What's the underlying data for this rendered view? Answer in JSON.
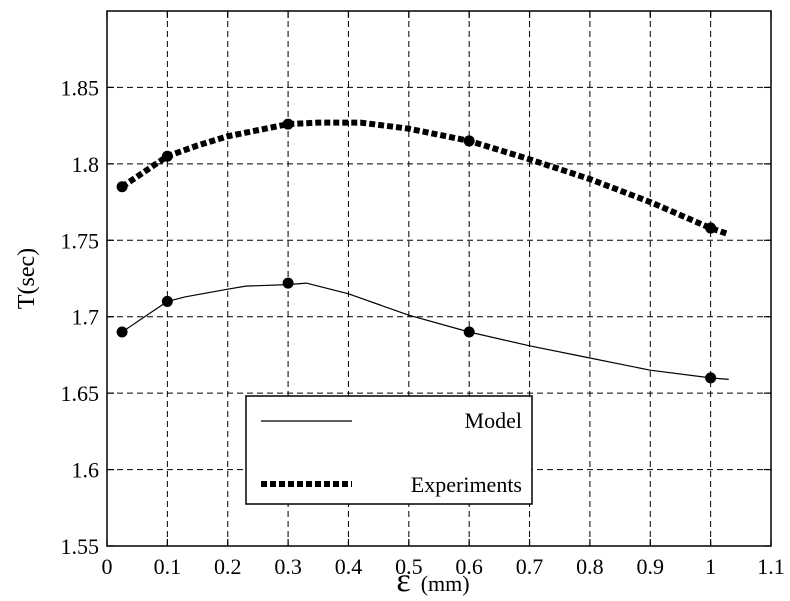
{
  "chart_data": {
    "type": "line",
    "title": "",
    "xlabel_symbol": "ε",
    "xlabel_unit": "(mm)",
    "ylabel": "T(sec)",
    "xlim": [
      0,
      1.1
    ],
    "ylim": [
      1.55,
      1.9
    ],
    "xticks": [
      "0",
      "0.1",
      "0.2",
      "0.3",
      "0.4",
      "0.5",
      "0.6",
      "0.7",
      "0.8",
      "0.9",
      "1",
      "1.1"
    ],
    "yticks": [
      "1.55",
      "1.6",
      "1.65",
      "1.7",
      "1.75",
      "1.8",
      "1.85"
    ],
    "xtick_values": [
      0,
      0.1,
      0.2,
      0.3,
      0.4,
      0.5,
      0.6,
      0.7,
      0.8,
      0.9,
      1.0,
      1.1
    ],
    "ytick_values": [
      1.55,
      1.6,
      1.65,
      1.7,
      1.75,
      1.8,
      1.85
    ],
    "grid": true,
    "grid_style": "dashed",
    "legend_position": "bottom-center",
    "series": [
      {
        "name": "Model",
        "style": "solid-thin",
        "color": "#000000",
        "line": [
          [
            0.025,
            1.69
          ],
          [
            0.1,
            1.71
          ],
          [
            0.13,
            1.713
          ],
          [
            0.2,
            1.718
          ],
          [
            0.23,
            1.72
          ],
          [
            0.3,
            1.721
          ],
          [
            0.33,
            1.722
          ],
          [
            0.4,
            1.715
          ],
          [
            0.5,
            1.701
          ],
          [
            0.6,
            1.69
          ],
          [
            0.7,
            1.681
          ],
          [
            0.8,
            1.673
          ],
          [
            0.9,
            1.665
          ],
          [
            1.0,
            1.66
          ],
          [
            1.03,
            1.659
          ]
        ],
        "markers": [
          [
            0.025,
            1.69
          ],
          [
            0.1,
            1.71
          ],
          [
            0.3,
            1.722
          ],
          [
            0.6,
            1.69
          ],
          [
            1.0,
            1.66
          ]
        ]
      },
      {
        "name": "Experiments",
        "style": "dotted-thick",
        "color": "#000000",
        "line": [
          [
            0.025,
            1.785
          ],
          [
            0.1,
            1.805
          ],
          [
            0.15,
            1.812
          ],
          [
            0.2,
            1.818
          ],
          [
            0.3,
            1.826
          ],
          [
            0.35,
            1.827
          ],
          [
            0.42,
            1.827
          ],
          [
            0.5,
            1.823
          ],
          [
            0.6,
            1.815
          ],
          [
            0.7,
            1.803
          ],
          [
            0.8,
            1.79
          ],
          [
            0.9,
            1.775
          ],
          [
            1.0,
            1.758
          ],
          [
            1.03,
            1.754
          ]
        ],
        "markers": [
          [
            0.025,
            1.785
          ],
          [
            0.1,
            1.805
          ],
          [
            0.3,
            1.826
          ],
          [
            0.6,
            1.815
          ],
          [
            1.0,
            1.758
          ]
        ]
      }
    ]
  }
}
